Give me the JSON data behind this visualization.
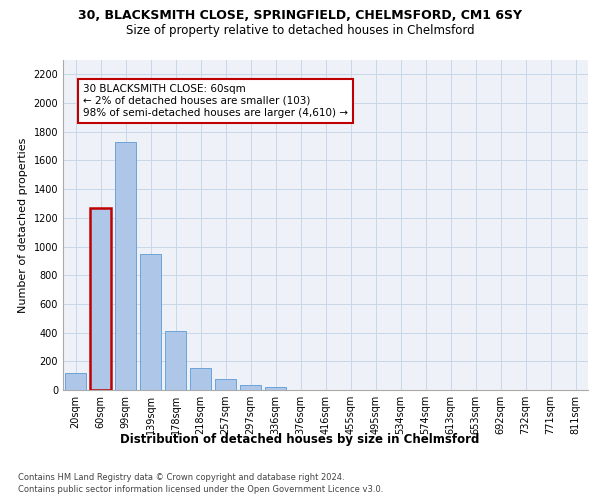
{
  "title1": "30, BLACKSMITH CLOSE, SPRINGFIELD, CHELMSFORD, CM1 6SY",
  "title2": "Size of property relative to detached houses in Chelmsford",
  "xlabel": "Distribution of detached houses by size in Chelmsford",
  "ylabel": "Number of detached properties",
  "categories": [
    "20sqm",
    "60sqm",
    "99sqm",
    "139sqm",
    "178sqm",
    "218sqm",
    "257sqm",
    "297sqm",
    "336sqm",
    "376sqm",
    "416sqm",
    "455sqm",
    "495sqm",
    "534sqm",
    "574sqm",
    "613sqm",
    "653sqm",
    "692sqm",
    "732sqm",
    "771sqm",
    "811sqm"
  ],
  "values": [
    120,
    1270,
    1730,
    950,
    410,
    155,
    75,
    35,
    20,
    0,
    0,
    0,
    0,
    0,
    0,
    0,
    0,
    0,
    0,
    0,
    0
  ],
  "highlight_index": 1,
  "highlight_color": "#c00000",
  "bar_color": "#aec6e8",
  "bar_edge_color": "#5b9bd5",
  "ylim": [
    0,
    2300
  ],
  "yticks": [
    0,
    200,
    400,
    600,
    800,
    1000,
    1200,
    1400,
    1600,
    1800,
    2000,
    2200
  ],
  "annotation_text": "30 BLACKSMITH CLOSE: 60sqm\n← 2% of detached houses are smaller (103)\n98% of semi-detached houses are larger (4,610) →",
  "footer1": "Contains HM Land Registry data © Crown copyright and database right 2024.",
  "footer2": "Contains public sector information licensed under the Open Government Licence v3.0.",
  "grid_color": "#c8d8e8",
  "background_color": "#eef2f8",
  "title1_fontsize": 9,
  "title2_fontsize": 8.5,
  "tick_fontsize": 7,
  "ylabel_fontsize": 8,
  "xlabel_fontsize": 8.5,
  "annotation_fontsize": 7.5,
  "footer_fontsize": 6
}
